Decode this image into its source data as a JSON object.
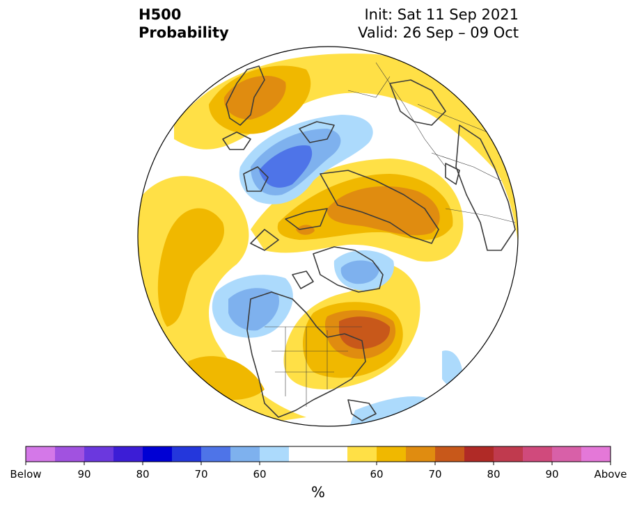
{
  "title": {
    "left_line1": "H500",
    "left_line2": "Probability",
    "right_line1": "Init: Sat 11 Sep 2021",
    "right_line2": "Valid: 26 Sep – 09 Oct"
  },
  "colorbar": {
    "unit": "%",
    "colors": [
      "#d478e8",
      "#a152e0",
      "#6b38de",
      "#3c1dd6",
      "#0000d4",
      "#2437dc",
      "#4e74e8",
      "#7eb1ee",
      "#acdafc",
      "#ffffff",
      "#ffffff",
      "#ffe046",
      "#f0b800",
      "#e08c10",
      "#c8581a",
      "#b02a26",
      "#c03a4e",
      "#d04a7c",
      "#d860a8",
      "#e478d8"
    ],
    "tick_labels": [
      "Below",
      "90",
      "80",
      "70",
      "60",
      "60",
      "70",
      "80",
      "90",
      "Above"
    ]
  },
  "map": {
    "projection": "north polar stereographic",
    "colors": {
      "light_yellow": "#ffe046",
      "gold": "#f0b800",
      "orange": "#e08c10",
      "dark_orange": "#c8581a",
      "light_blue": "#acdafc",
      "mid_blue": "#7eb1ee",
      "blue": "#4e74e8",
      "coast": "#3a3a3a"
    }
  }
}
